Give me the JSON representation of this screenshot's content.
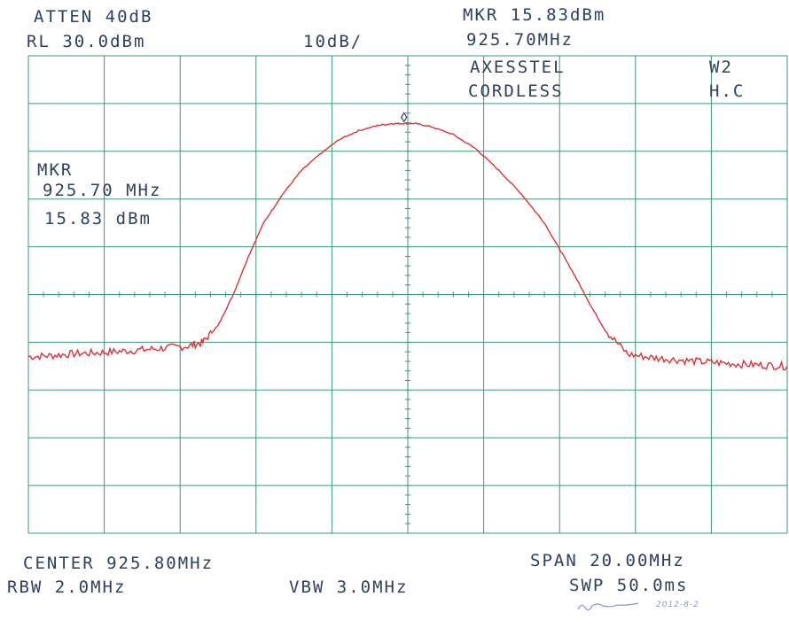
{
  "header": {
    "atten": "ATTEN 40dB",
    "ref_level": "RL 30.0dBm",
    "scale": "10dB/",
    "marker_level": "MKR 15.83dBm",
    "marker_freq": "925.70MHz",
    "device_line1": "AXESSTEL",
    "device_line2": "CORDLESS",
    "tag_line1": "W2",
    "tag_line2": "H.C"
  },
  "marker_box": {
    "title": "MKR",
    "freq": "925.70 MHz",
    "level": "15.83 dBm"
  },
  "footer": {
    "center": "CENTER 925.80MHz",
    "span": "SPAN 20.00MHz",
    "rbw": "RBW 2.0MHz",
    "vbw": "VBW 3.0MHz",
    "sweep": "SWP 50.0ms",
    "signature": "2012-8-2"
  },
  "colors": {
    "grid": "#3a9a72",
    "trace": "#e0303a",
    "text": "#2f3f5f",
    "signature": "#8a97d0"
  },
  "chart_data": {
    "type": "line",
    "title": "",
    "xlabel": "",
    "ylabel": "",
    "xlim": [
      915.8,
      935.8
    ],
    "ylim": [
      -70,
      30
    ],
    "grid": true,
    "series": [
      {
        "x": [
          915.8,
          916.4,
          917.0,
          917.6,
          918.2,
          918.8,
          919.4,
          920.0,
          920.4,
          920.8,
          921.2,
          921.6,
          922.0,
          922.5,
          923.0,
          923.5,
          924.0,
          924.5,
          925.0,
          925.4,
          925.7,
          926.0,
          926.4,
          927.0,
          927.6,
          928.2,
          928.8,
          929.4,
          929.8,
          930.2,
          930.6,
          931.0,
          931.6,
          932.2,
          932.8,
          933.4,
          934.0,
          934.6,
          935.2,
          935.8
        ],
        "y": [
          -33.0,
          -32.8,
          -32.4,
          -32.2,
          -31.9,
          -31.6,
          -31.2,
          -30.8,
          -30.0,
          -26.5,
          -20.0,
          -12.0,
          -5.0,
          1.0,
          6.0,
          9.5,
          12.5,
          14.3,
          15.4,
          15.8,
          15.83,
          15.8,
          15.2,
          13.5,
          10.5,
          6.0,
          1.0,
          -5.0,
          -10.5,
          -16.0,
          -22.0,
          -27.5,
          -32.5,
          -33.2,
          -33.6,
          -34.0,
          -34.3,
          -34.6,
          -34.8,
          -35.0
        ]
      }
    ],
    "marker": {
      "x": 925.7,
      "y": 15.83
    }
  }
}
